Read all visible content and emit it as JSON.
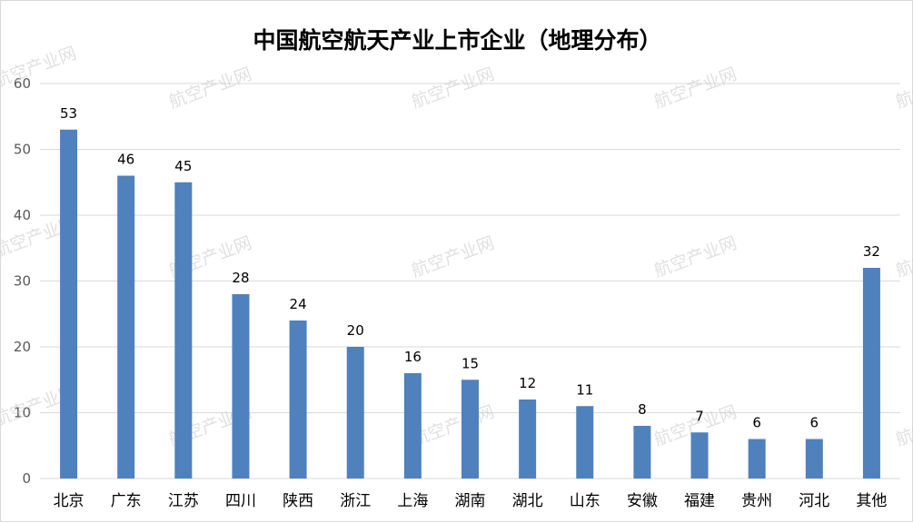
{
  "watermark": "航空产业网",
  "chart_data": {
    "type": "bar",
    "title": "中国航空航天产业上市企业（地理分布）",
    "xlabel": "",
    "ylabel": "",
    "categories": [
      "北京",
      "广东",
      "江苏",
      "四川",
      "陕西",
      "浙江",
      "上海",
      "湖南",
      "湖北",
      "山东",
      "安徽",
      "福建",
      "贵州",
      "河北",
      "其他"
    ],
    "values": [
      53,
      46,
      45,
      28,
      24,
      20,
      16,
      15,
      12,
      11,
      8,
      7,
      6,
      6,
      32
    ],
    "ylim": [
      0,
      60
    ],
    "yticks": [
      0,
      10,
      20,
      30,
      40,
      50,
      60
    ],
    "grid": true,
    "bar_color": "#4f81bd",
    "grid_color": "#d9d9d9"
  }
}
